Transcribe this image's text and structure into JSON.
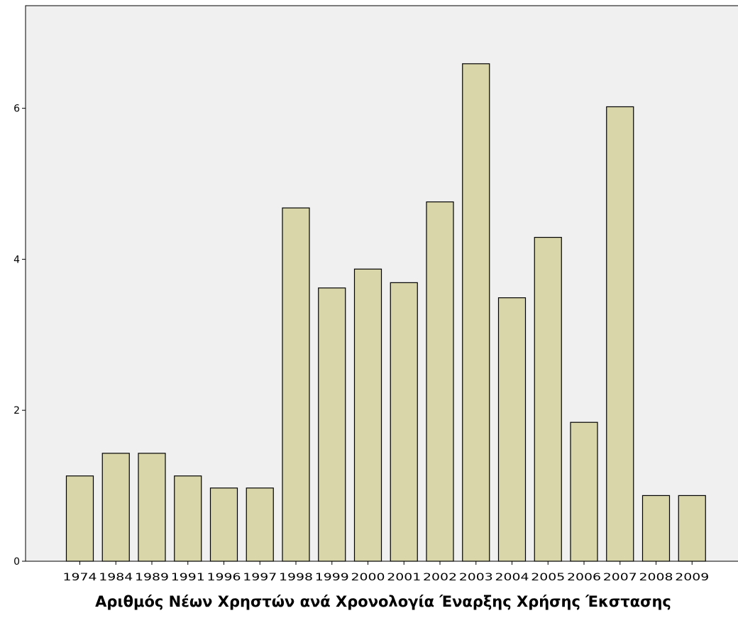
{
  "chart_data": {
    "type": "bar",
    "title": "",
    "xlabel": "Αριθμός Νέων Χρηστών ανά Χρονολογία Έναρξης Χρήσης Έκστασης",
    "ylabel": "",
    "categories": [
      "1974",
      "1984",
      "1989",
      "1991",
      "1996",
      "1997",
      "1998",
      "1999",
      "2000",
      "2001",
      "2002",
      "2003",
      "2004",
      "2005",
      "2006",
      "2007",
      "2008",
      "2009"
    ],
    "values": [
      1.13,
      1.43,
      1.43,
      1.13,
      0.97,
      0.97,
      4.68,
      3.62,
      3.87,
      3.69,
      4.76,
      6.59,
      3.49,
      4.29,
      1.84,
      6.02,
      0.87,
      0.87
    ],
    "y_ticks": [
      "0",
      "2",
      "4",
      "6"
    ],
    "ylim": [
      0,
      7.4
    ],
    "grid": false,
    "colors": {
      "plot_background": "#f0f0f0",
      "bar_fill": "#d9d6a9",
      "bar_stroke": "#000000"
    }
  }
}
